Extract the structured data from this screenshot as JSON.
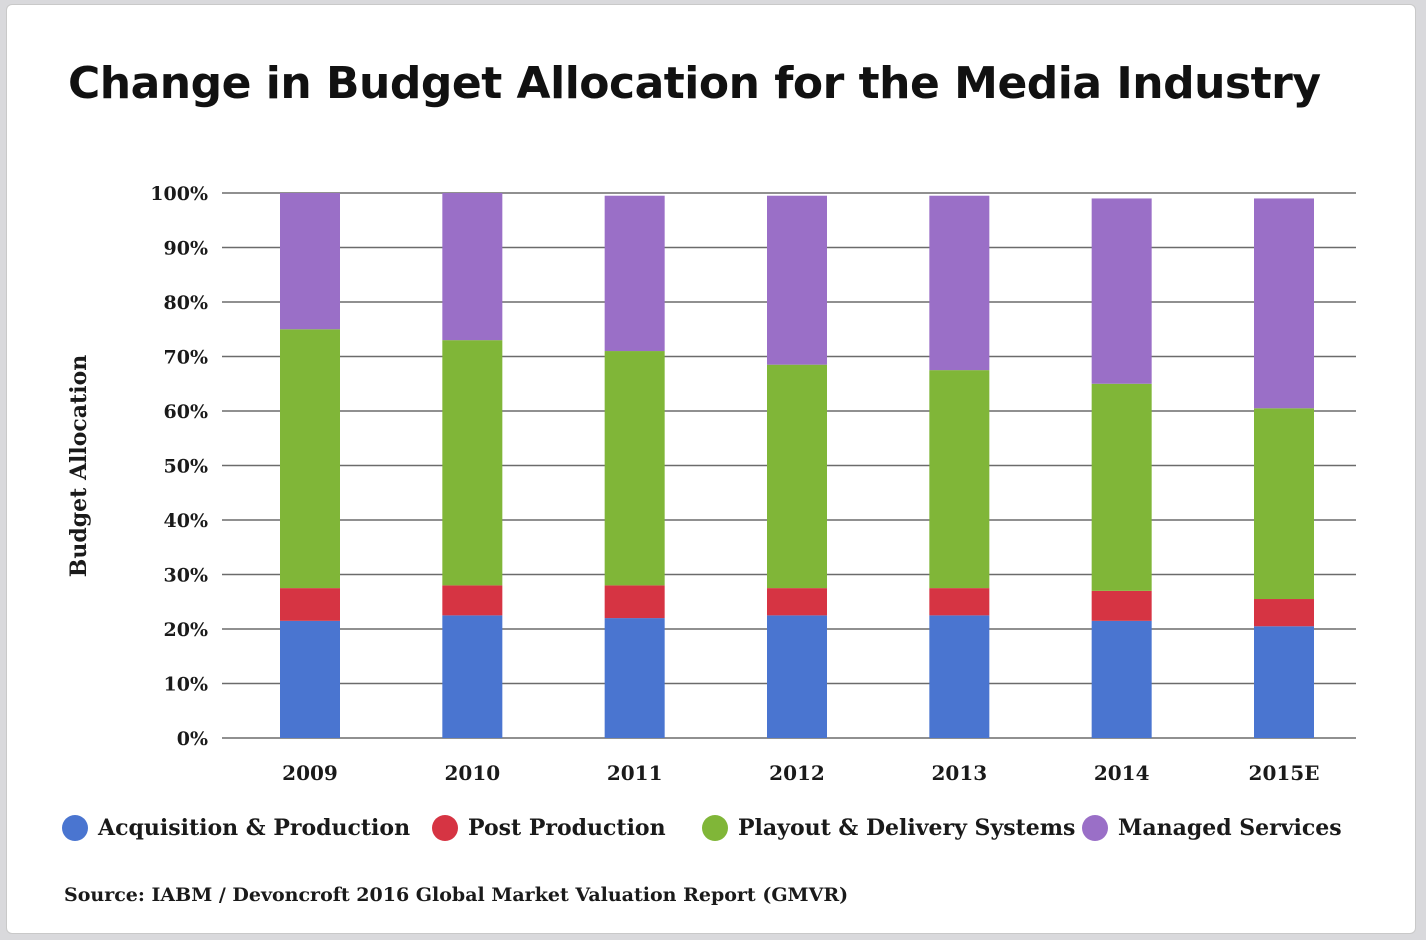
{
  "chart_data": {
    "type": "bar",
    "stacked": true,
    "title": "Change in Budget Allocation for the Media Industry",
    "ylabel": "Budget Allocation",
    "xlabel": "",
    "ylim": [
      0,
      100
    ],
    "yticks": [
      "0%",
      "10%",
      "20%",
      "30%",
      "40%",
      "50%",
      "60%",
      "70%",
      "80%",
      "90%",
      "100%"
    ],
    "grid": true,
    "legend_position": "bottom",
    "categories": [
      "2009",
      "2010",
      "2011",
      "2012",
      "2013",
      "2014",
      "2015E"
    ],
    "series": [
      {
        "name": "Acquisition & Production",
        "color": "#4a75d0",
        "values": [
          21.5,
          22.5,
          22,
          22.5,
          22.5,
          21.5,
          20.5
        ]
      },
      {
        "name": "Post Production",
        "color": "#d63443",
        "values": [
          6,
          5.5,
          6,
          5,
          5,
          5.5,
          5
        ]
      },
      {
        "name": "Playout & Delivery Systems",
        "color": "#80b638",
        "values": [
          47.5,
          45,
          43,
          41,
          40,
          38,
          35
        ]
      },
      {
        "name": "Managed Services",
        "color": "#9a6fc7",
        "values": [
          25,
          27,
          28.5,
          31,
          32,
          34,
          38.5
        ]
      }
    ],
    "source": "Source: IABM / Devoncroft 2016 Global Market Valuation Report (GMVR)"
  }
}
